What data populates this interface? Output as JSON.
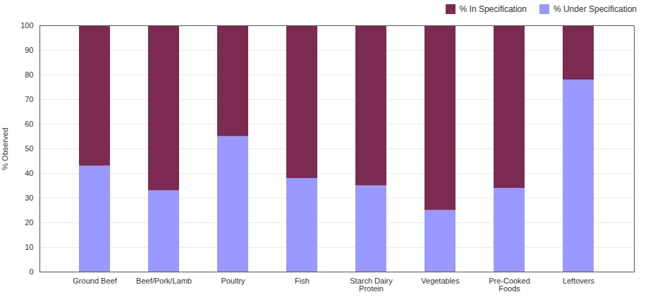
{
  "chart_data": {
    "type": "bar",
    "stacked": true,
    "categories": [
      "Ground Beef",
      "Beef/Pork/Lamb",
      "Poultry",
      "Fish",
      "Starch Dairy\nProtein",
      "Vegetables",
      "Pre-Cooked\nFoods",
      "Leftovers"
    ],
    "series": [
      {
        "name": "% Under Specification",
        "color": "#9999FF",
        "values": [
          43,
          33,
          55,
          38,
          35,
          25,
          34,
          78
        ]
      },
      {
        "name": "% In Specification",
        "color": "#7B2B52",
        "values": [
          57,
          67,
          45,
          62,
          65,
          75,
          66,
          22
        ]
      }
    ],
    "ylabel": "% Observed",
    "ylim": [
      0,
      100
    ],
    "yticks": [
      0,
      10,
      20,
      30,
      40,
      50,
      60,
      70,
      80,
      90,
      100
    ],
    "grid": true,
    "legend": "upper right"
  }
}
